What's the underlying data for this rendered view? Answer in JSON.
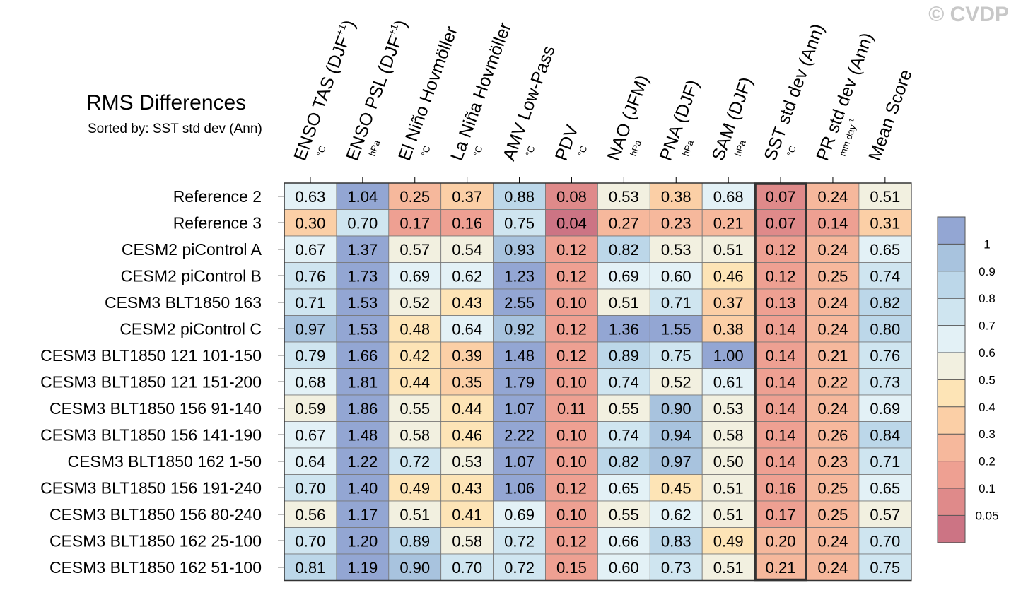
{
  "header": {
    "title": "RMS Differences",
    "subtitle": "Sorted by: SST std dev (Ann)",
    "watermark": "© CVDP"
  },
  "chart_data": {
    "type": "heatmap",
    "columns": [
      {
        "label": "ENSO TAS (DJF",
        "sup": "+1",
        "close": ")",
        "unit": "°C"
      },
      {
        "label": "ENSO PSL (DJF",
        "sup": "+1",
        "close": ")",
        "unit": "hPa"
      },
      {
        "label": "El Niño Hovmöller",
        "sup": "",
        "close": "",
        "unit": "°C"
      },
      {
        "label": "La Niña Hovmöller",
        "sup": "",
        "close": "",
        "unit": "°C"
      },
      {
        "label": "AMV Low-Pass",
        "sup": "",
        "close": "",
        "unit": "°C"
      },
      {
        "label": "PDV",
        "sup": "",
        "close": "",
        "unit": "°C"
      },
      {
        "label": "NAO (JFM)",
        "sup": "",
        "close": "",
        "unit": "hPa"
      },
      {
        "label": "PNA (DJF)",
        "sup": "",
        "close": "",
        "unit": "hPa"
      },
      {
        "label": "SAM (DJF)",
        "sup": "",
        "close": "",
        "unit": "hPa"
      },
      {
        "label": "SST std dev (Ann)",
        "sup": "",
        "close": "",
        "unit": "°C"
      },
      {
        "label": "PR std dev (Ann)",
        "sup": "",
        "close": "",
        "unit": "mm day",
        "unit_sup": "-1"
      },
      {
        "label": "Mean Score",
        "sup": "",
        "close": "",
        "unit": ""
      }
    ],
    "rows": [
      "Reference 2",
      "Reference 3",
      "CESM2 piControl A",
      "CESM2 piControl B",
      "CESM3 BLT1850 163",
      "CESM2 piControl C",
      "CESM3 BLT1850 121 101-150",
      "CESM3 BLT1850 121 151-200",
      "CESM3 BLT1850 156 91-140",
      "CESM3 BLT1850 156 141-190",
      "CESM3 BLT1850 162 1-50",
      "CESM3 BLT1850 156 191-240",
      "CESM3 BLT1850 156 80-240",
      "CESM3 BLT1850 162 25-100",
      "CESM3 BLT1850 162 51-100"
    ],
    "values": [
      [
        "0.63",
        "1.04",
        "0.25",
        "0.37",
        "0.88",
        "0.08",
        "0.53",
        "0.38",
        "0.68",
        "0.07",
        "0.24",
        "0.51"
      ],
      [
        "0.30",
        "0.70",
        "0.17",
        "0.16",
        "0.75",
        "0.04",
        "0.27",
        "0.23",
        "0.21",
        "0.07",
        "0.14",
        "0.31"
      ],
      [
        "0.67",
        "1.37",
        "0.57",
        "0.54",
        "0.93",
        "0.12",
        "0.82",
        "0.53",
        "0.51",
        "0.12",
        "0.24",
        "0.65"
      ],
      [
        "0.76",
        "1.73",
        "0.69",
        "0.62",
        "1.23",
        "0.12",
        "0.69",
        "0.60",
        "0.46",
        "0.12",
        "0.25",
        "0.74"
      ],
      [
        "0.71",
        "1.53",
        "0.52",
        "0.43",
        "2.55",
        "0.10",
        "0.51",
        "0.71",
        "0.37",
        "0.13",
        "0.24",
        "0.82"
      ],
      [
        "0.97",
        "1.53",
        "0.48",
        "0.64",
        "0.92",
        "0.12",
        "1.36",
        "1.55",
        "0.38",
        "0.14",
        "0.24",
        "0.80"
      ],
      [
        "0.79",
        "1.66",
        "0.42",
        "0.39",
        "1.48",
        "0.12",
        "0.89",
        "0.75",
        "1.00",
        "0.14",
        "0.21",
        "0.76"
      ],
      [
        "0.68",
        "1.81",
        "0.44",
        "0.35",
        "1.79",
        "0.10",
        "0.74",
        "0.52",
        "0.61",
        "0.14",
        "0.22",
        "0.73"
      ],
      [
        "0.59",
        "1.86",
        "0.55",
        "0.44",
        "1.07",
        "0.11",
        "0.55",
        "0.90",
        "0.53",
        "0.14",
        "0.24",
        "0.69"
      ],
      [
        "0.67",
        "1.48",
        "0.58",
        "0.46",
        "2.22",
        "0.10",
        "0.74",
        "0.94",
        "0.58",
        "0.14",
        "0.26",
        "0.84"
      ],
      [
        "0.64",
        "1.22",
        "0.72",
        "0.53",
        "1.07",
        "0.10",
        "0.82",
        "0.97",
        "0.50",
        "0.14",
        "0.23",
        "0.71"
      ],
      [
        "0.70",
        "1.40",
        "0.49",
        "0.43",
        "1.06",
        "0.12",
        "0.65",
        "0.45",
        "0.51",
        "0.16",
        "0.25",
        "0.65"
      ],
      [
        "0.56",
        "1.17",
        "0.51",
        "0.41",
        "0.69",
        "0.10",
        "0.55",
        "0.62",
        "0.51",
        "0.17",
        "0.25",
        "0.57"
      ],
      [
        "0.70",
        "1.20",
        "0.89",
        "0.58",
        "0.72",
        "0.12",
        "0.66",
        "0.83",
        "0.49",
        "0.20",
        "0.24",
        "0.70"
      ],
      [
        "0.81",
        "1.19",
        "0.90",
        "0.70",
        "0.72",
        "0.15",
        "0.60",
        "0.73",
        "0.51",
        "0.21",
        "0.24",
        "0.75"
      ]
    ],
    "highlight_column": "SST std dev (Ann)",
    "colorbar": {
      "boundaries": [
        0,
        0.05,
        0.1,
        0.2,
        0.3,
        0.4,
        0.5,
        0.6,
        0.7,
        0.8,
        0.9,
        1
      ],
      "tick_labels": [
        "1",
        "0.9",
        "0.8",
        "0.7",
        "0.6",
        "0.5",
        "0.4",
        "0.3",
        "0.2",
        "0.1",
        "0.05"
      ],
      "colors": [
        "#cc7484",
        "#df8a8a",
        "#eea092",
        "#f6b89c",
        "#fbcfa6",
        "#fde4b6",
        "#f2f0e0",
        "#e3f1f6",
        "#cfe5f0",
        "#bcd7e9",
        "#a8c3de",
        "#93a6d3"
      ]
    }
  }
}
